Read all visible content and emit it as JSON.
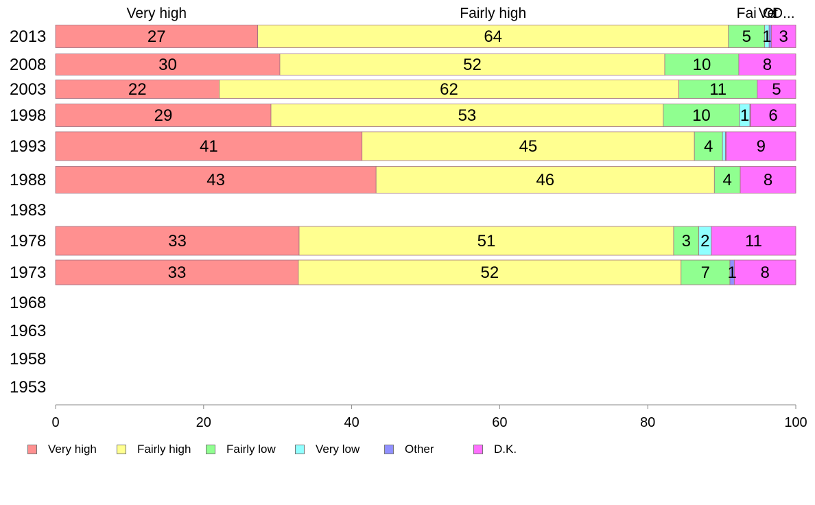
{
  "chart_data": {
    "type": "bar",
    "orientation": "horizontal",
    "stacked": true,
    "categories": [
      "2013",
      "2008",
      "2003",
      "1998",
      "1993",
      "1988",
      "1983",
      "1978",
      "1973",
      "1968",
      "1963",
      "1958",
      "1953"
    ],
    "series": [
      {
        "name": "Very high",
        "color": "#ff9090",
        "values": [
          27.3,
          30.3,
          22.1,
          29.1,
          41.4,
          43.3,
          null,
          32.9,
          32.8,
          null,
          null,
          null,
          null
        ],
        "labels": [
          "27",
          "30",
          "22",
          "29",
          "41",
          "43",
          "",
          "33",
          "33",
          "",
          "",
          "",
          ""
        ]
      },
      {
        "name": "Fairly high",
        "color": "#ffff90",
        "values": [
          63.6,
          52.0,
          62.1,
          53.0,
          44.9,
          45.7,
          null,
          50.6,
          51.7,
          null,
          null,
          null,
          null
        ],
        "labels": [
          "64",
          "52",
          "62",
          "53",
          "45",
          "46",
          "",
          "51",
          "52",
          "",
          "",
          "",
          ""
        ]
      },
      {
        "name": "Fairly low",
        "color": "#90ff90",
        "values": [
          4.9,
          10.0,
          10.6,
          10.3,
          3.8,
          3.5,
          null,
          3.4,
          6.6,
          null,
          null,
          null,
          null
        ],
        "labels": [
          "5",
          "10",
          "11",
          "10",
          "4",
          "4",
          "",
          "3",
          "7",
          "",
          "",
          "",
          ""
        ]
      },
      {
        "name": "Very low",
        "color": "#90ffff",
        "values": [
          0.6,
          0.0,
          0.0,
          1.4,
          0.4,
          0.0,
          null,
          1.7,
          0.0,
          null,
          null,
          null,
          null
        ],
        "labels": [
          "1",
          "",
          "",
          "1",
          "",
          "",
          "",
          "2",
          "",
          "",
          "",
          "",
          ""
        ]
      },
      {
        "name": "Other",
        "color": "#9090ff",
        "values": [
          0.3,
          0.0,
          0.0,
          0.1,
          0.1,
          0.0,
          null,
          0.0,
          0.6,
          null,
          null,
          null,
          null
        ],
        "labels": [
          "",
          "",
          "",
          "",
          "",
          "",
          "",
          "",
          "1",
          "",
          "",
          "",
          ""
        ]
      },
      {
        "name": "D.K.",
        "color": "#ff70ff",
        "values": [
          3.3,
          7.7,
          5.2,
          6.1,
          9.4,
          7.5,
          null,
          11.4,
          8.3,
          null,
          null,
          null,
          null
        ],
        "labels": [
          "3",
          "8",
          "5",
          "6",
          "9",
          "8",
          "",
          "11",
          "8",
          "",
          "",
          "",
          ""
        ]
      }
    ],
    "top_labels": [
      "Very high",
      "Fairly high",
      "Fai",
      "Ve",
      "Ot",
      "D..."
    ],
    "xlim": [
      0,
      100
    ],
    "xticks": [
      0,
      20,
      40,
      60,
      80,
      100
    ],
    "title": "",
    "xlabel": "",
    "ylabel": "",
    "grid": false,
    "legend_position": "bottom"
  }
}
